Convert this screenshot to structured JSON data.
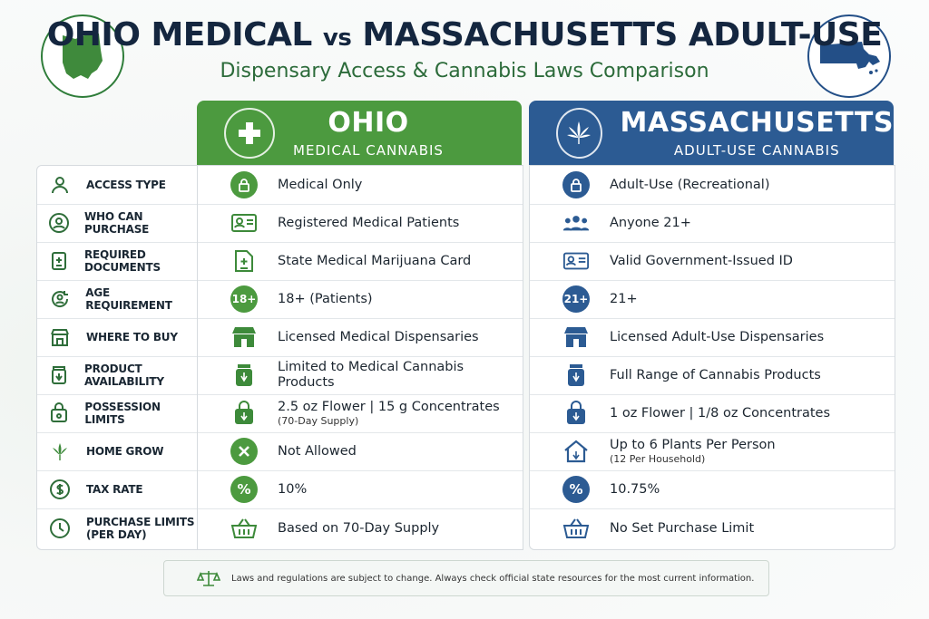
{
  "header": {
    "title_left": "OHIO MEDICAL",
    "title_vs": "vs",
    "title_right": "MASSACHUSETTS ADULT-USE",
    "subtitle": "Dispensary Access & Cannabis Laws Comparison"
  },
  "columns": {
    "ohio": {
      "name": "OHIO",
      "sub": "MEDICAL CANNABIS",
      "color": "#4c9a3f"
    },
    "massachusetts": {
      "name": "MASSACHUSETTS",
      "sub": "ADULT-USE CANNABIS",
      "color": "#2c5b93"
    }
  },
  "rows": [
    {
      "label": "ACCESS TYPE",
      "label_icon": "person-icon",
      "ohio": "Medical Only",
      "ohio_icon": "lock-icon",
      "ma": "Adult-Use (Recreational)",
      "ma_icon": "lock-icon"
    },
    {
      "label": "WHO CAN PURCHASE",
      "label_icon": "user-circle-icon",
      "ohio": "Registered Medical Patients",
      "ohio_icon": "id-card-icon",
      "ma": "Anyone 21+",
      "ma_icon": "group-icon"
    },
    {
      "label": "REQUIRED DOCUMENTS",
      "label_icon": "document-icon",
      "ohio": "State Medical Marijuana Card",
      "ohio_icon": "medical-document-icon",
      "ma": "Valid Government-Issued ID",
      "ma_icon": "id-card-icon"
    },
    {
      "label": "AGE REQUIREMENT",
      "label_icon": "age-icon",
      "ohio": "18+ (Patients)",
      "ohio_icon": "badge-18",
      "ohio_badge": "18+",
      "ma": "21+",
      "ma_icon": "badge-21",
      "ma_badge": "21+"
    },
    {
      "label": "WHERE TO BUY",
      "label_icon": "store-icon",
      "ohio": "Licensed Medical Dispensaries",
      "ohio_icon": "store-icon",
      "ma": "Licensed Adult-Use Dispensaries",
      "ma_icon": "store-icon"
    },
    {
      "label": "PRODUCT AVAILABILITY",
      "label_icon": "jar-icon",
      "ohio": "Limited to Medical Cannabis Products",
      "ohio_icon": "jar-icon",
      "ma": "Full Range of Cannabis Products",
      "ma_icon": "jar-icon"
    },
    {
      "label": "POSSESSION LIMITS",
      "label_icon": "bag-icon",
      "ohio": "2.5 oz Flower | 15 g Concentrates",
      "ohio_note": "(70-Day Supply)",
      "ohio_icon": "bag-icon",
      "ma": "1 oz Flower | 1/8 oz Concentrates",
      "ma_icon": "bag-icon"
    },
    {
      "label": "HOME GROW",
      "label_icon": "leaf-icon",
      "ohio": "Not Allowed",
      "ohio_icon": "x-circle-icon",
      "ma": "Up to 6 Plants Per Person",
      "ma_note": "(12 Per Household)",
      "ma_icon": "house-icon"
    },
    {
      "label": "TAX RATE",
      "label_icon": "dollar-icon",
      "ohio": "10%",
      "ohio_icon": "percent-icon",
      "ma": "10.75%",
      "ma_icon": "percent-icon"
    },
    {
      "label": "PURCHASE LIMITS",
      "label_line2": "(PER DAY)",
      "label_icon": "clock-icon",
      "ohio": "Based on 70-Day Supply",
      "ohio_icon": "basket-icon",
      "ma": "No Set Purchase Limit",
      "ma_icon": "basket-icon"
    }
  ],
  "footer": {
    "text": "Laws and regulations are subject to change. Always check official state resources for the most current information."
  }
}
